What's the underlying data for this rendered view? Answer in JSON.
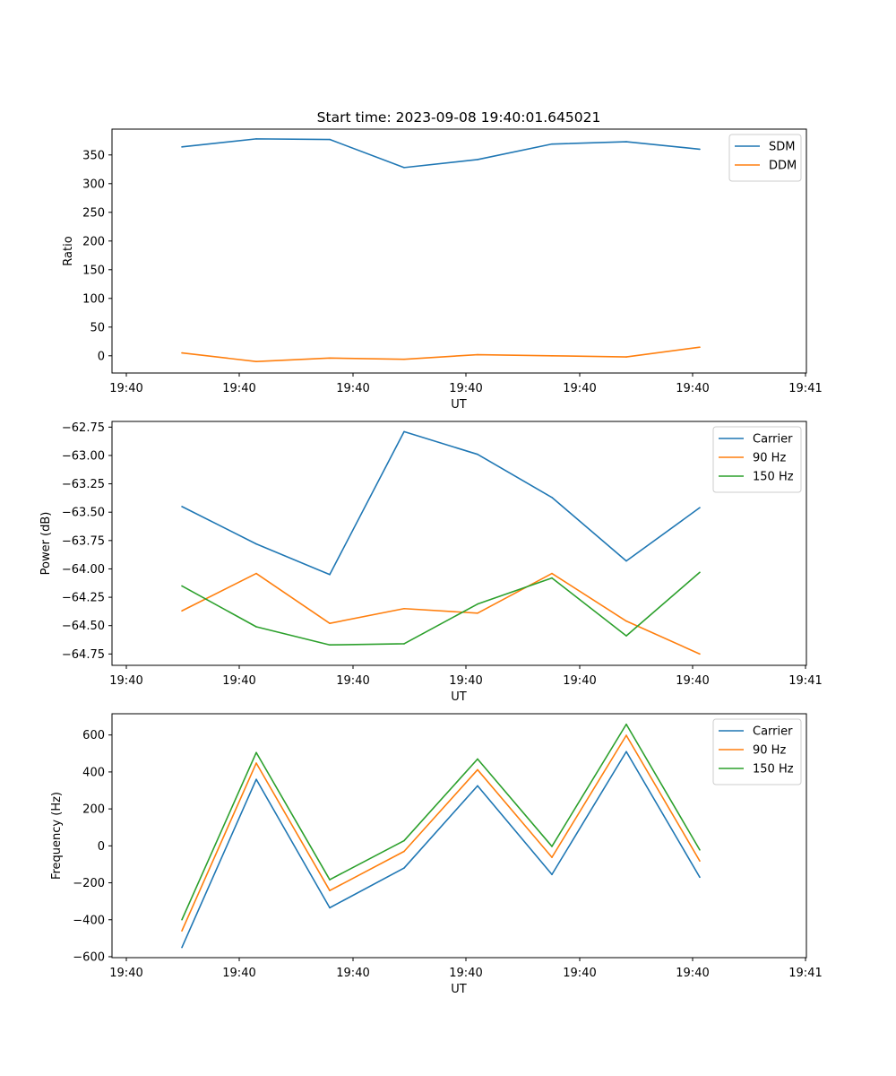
{
  "title": "Start time: 2023-09-08 19:40:01.645021",
  "chart_data": [
    {
      "type": "line",
      "title": "Start time: 2023-09-08 19:40:01.645021",
      "xlabel": "UT",
      "ylabel": "Ratio",
      "x_tick_labels": [
        "19:40",
        "19:40",
        "19:40",
        "19:40",
        "19:40",
        "19:40",
        "19:41"
      ],
      "y_ticks": [
        0,
        50,
        100,
        150,
        200,
        250,
        300,
        350
      ],
      "y_tick_labels": [
        "0",
        "50",
        "100",
        "150",
        "200",
        "250",
        "300",
        "350"
      ],
      "ylim": [
        -30,
        395
      ],
      "legend_position": "top-right",
      "series": [
        {
          "name": "SDM",
          "color": "#1f77b4",
          "values": [
            364,
            378,
            377,
            328,
            342,
            369,
            373,
            360
          ]
        },
        {
          "name": "DDM",
          "color": "#ff7f0e",
          "values": [
            5,
            -10,
            -4,
            -6,
            2,
            0,
            -2,
            15
          ]
        }
      ]
    },
    {
      "type": "line",
      "title": "",
      "xlabel": "UT",
      "ylabel": "Power (dB)",
      "x_tick_labels": [
        "19:40",
        "19:40",
        "19:40",
        "19:40",
        "19:40",
        "19:40",
        "19:41"
      ],
      "y_ticks": [
        -64.75,
        -64.5,
        -64.25,
        -64.0,
        -63.75,
        -63.5,
        -63.25,
        -63.0,
        -62.75
      ],
      "y_tick_labels": [
        "−64.75",
        "−64.50",
        "−64.25",
        "−64.00",
        "−63.75",
        "−63.50",
        "−63.25",
        "−63.00",
        "−62.75"
      ],
      "ylim": [
        -64.85,
        -62.7
      ],
      "legend_position": "top-right",
      "series": [
        {
          "name": "Carrier",
          "color": "#1f77b4",
          "values": [
            -63.45,
            -63.78,
            -64.05,
            -62.79,
            -62.99,
            -63.37,
            -63.93,
            -63.46
          ]
        },
        {
          "name": "90 Hz",
          "color": "#ff7f0e",
          "values": [
            -64.37,
            -64.04,
            -64.48,
            -64.35,
            -64.39,
            -64.04,
            -64.46,
            -64.75
          ]
        },
        {
          "name": "150 Hz",
          "color": "#2ca02c",
          "values": [
            -64.15,
            -64.51,
            -64.67,
            -64.66,
            -64.31,
            -64.08,
            -64.59,
            -64.03
          ]
        }
      ]
    },
    {
      "type": "line",
      "title": "",
      "xlabel": "UT",
      "ylabel": "Frequency (Hz)",
      "x_tick_labels": [
        "19:40",
        "19:40",
        "19:40",
        "19:40",
        "19:40",
        "19:40",
        "19:41"
      ],
      "y_ticks": [
        -600,
        -400,
        -200,
        0,
        200,
        400,
        600
      ],
      "y_tick_labels": [
        "−600",
        "−400",
        "−200",
        "0",
        "200",
        "400",
        "600"
      ],
      "ylim": [
        -605,
        715
      ],
      "legend_position": "top-right",
      "series": [
        {
          "name": "Carrier",
          "color": "#1f77b4",
          "values": [
            -550,
            360,
            -335,
            -120,
            325,
            -155,
            510,
            -170
          ]
        },
        {
          "name": "90 Hz",
          "color": "#ff7f0e",
          "values": [
            -460,
            448,
            -242,
            -30,
            412,
            -62,
            598,
            -82
          ]
        },
        {
          "name": "150 Hz",
          "color": "#2ca02c",
          "values": [
            -400,
            505,
            -183,
            28,
            470,
            -3,
            658,
            -22
          ]
        }
      ]
    }
  ]
}
